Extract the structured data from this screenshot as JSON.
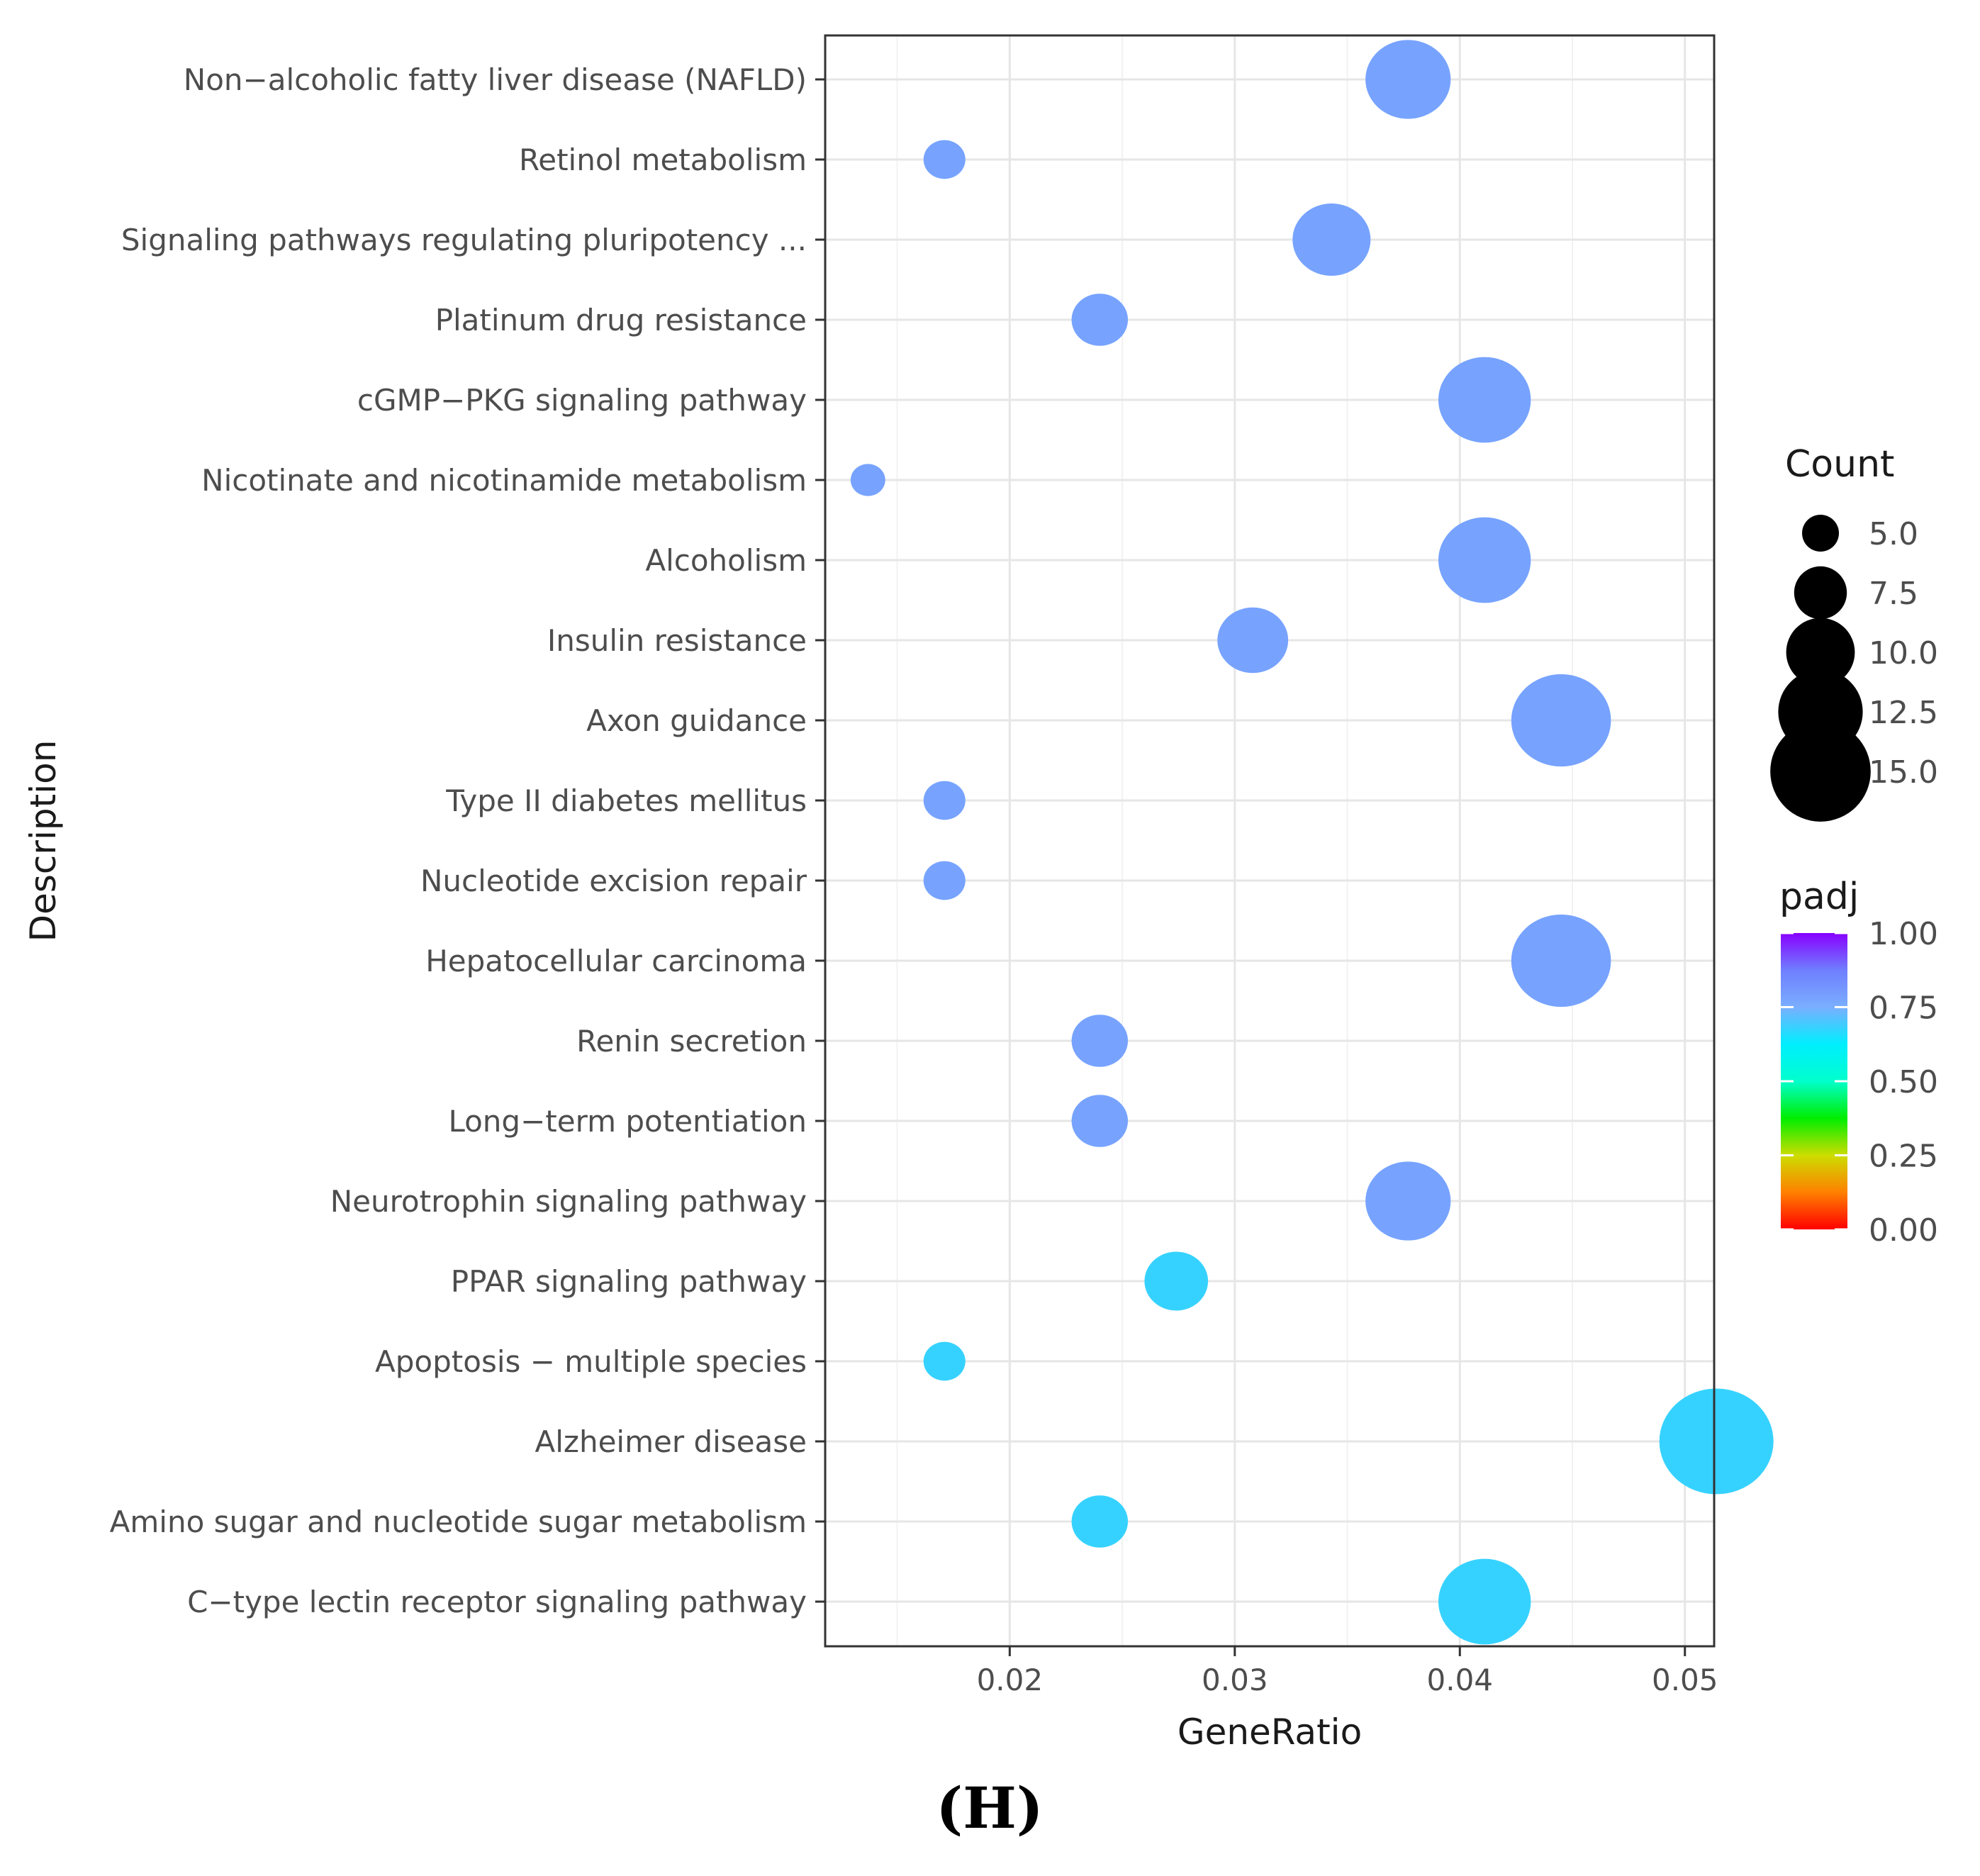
{
  "chart_data": {
    "type": "scatter",
    "title": "",
    "xlabel": "GeneRatio",
    "ylabel": "Description",
    "xlim": [
      0.0118,
      0.0513
    ],
    "x_ticks": [
      0.02,
      0.03,
      0.04,
      0.05
    ],
    "x_tick_labels": [
      "0.02",
      "0.03",
      "0.04",
      "0.05"
    ],
    "grid": true,
    "legend_position": "right",
    "categories": [
      "Non−alcoholic fatty liver disease (NAFLD)",
      "Retinol metabolism",
      "Signaling pathways regulating pluripotency ...",
      "Platinum drug resistance",
      "cGMP−PKG signaling pathway",
      "Nicotinate and nicotinamide metabolism",
      "Alcoholism",
      "Insulin resistance",
      "Axon guidance",
      "Type II diabetes mellitus",
      "Nucleotide excision repair",
      "Hepatocellular carcinoma",
      "Renin secretion",
      "Long−term potentiation",
      "Neurotrophin signaling pathway",
      "PPAR signaling pathway",
      "Apoptosis − multiple species",
      "Alzheimer disease",
      "Amino sugar and nucleotide sugar metabolism",
      "C−type lectin receptor signaling pathway"
    ],
    "points": [
      {
        "description": "Non−alcoholic fatty liver disease (NAFLD)",
        "gene_ratio": 0.0377,
        "count": 11,
        "padj": 0.78
      },
      {
        "description": "Retinol metabolism",
        "gene_ratio": 0.0171,
        "count": 5,
        "padj": 0.78
      },
      {
        "description": "Signaling pathways regulating pluripotency ...",
        "gene_ratio": 0.0343,
        "count": 10,
        "padj": 0.78
      },
      {
        "description": "Platinum drug resistance",
        "gene_ratio": 0.024,
        "count": 7,
        "padj": 0.78
      },
      {
        "description": "cGMP−PKG signaling pathway",
        "gene_ratio": 0.0411,
        "count": 12,
        "padj": 0.78
      },
      {
        "description": "Nicotinate and nicotinamide metabolism",
        "gene_ratio": 0.0137,
        "count": 4,
        "padj": 0.78
      },
      {
        "description": "Alcoholism",
        "gene_ratio": 0.0411,
        "count": 12,
        "padj": 0.78
      },
      {
        "description": "Insulin resistance",
        "gene_ratio": 0.0308,
        "count": 9,
        "padj": 0.78
      },
      {
        "description": "Axon guidance",
        "gene_ratio": 0.0445,
        "count": 13,
        "padj": 0.78
      },
      {
        "description": "Type II diabetes mellitus",
        "gene_ratio": 0.0171,
        "count": 5,
        "padj": 0.78
      },
      {
        "description": "Nucleotide excision repair",
        "gene_ratio": 0.0171,
        "count": 5,
        "padj": 0.78
      },
      {
        "description": "Hepatocellular carcinoma",
        "gene_ratio": 0.0445,
        "count": 13,
        "padj": 0.78
      },
      {
        "description": "Renin secretion",
        "gene_ratio": 0.024,
        "count": 7,
        "padj": 0.78
      },
      {
        "description": "Long−term potentiation",
        "gene_ratio": 0.024,
        "count": 7,
        "padj": 0.78
      },
      {
        "description": "Neurotrophin signaling pathway",
        "gene_ratio": 0.0377,
        "count": 11,
        "padj": 0.78
      },
      {
        "description": "PPAR signaling pathway",
        "gene_ratio": 0.0274,
        "count": 8,
        "padj": 0.68
      },
      {
        "description": "Apoptosis − multiple species",
        "gene_ratio": 0.0171,
        "count": 5,
        "padj": 0.68
      },
      {
        "description": "Alzheimer disease",
        "gene_ratio": 0.0514,
        "count": 15,
        "padj": 0.68
      },
      {
        "description": "Amino sugar and nucleotide sugar metabolism",
        "gene_ratio": 0.024,
        "count": 7,
        "padj": 0.68
      },
      {
        "description": "C−type lectin receptor signaling pathway",
        "gene_ratio": 0.0411,
        "count": 12,
        "padj": 0.68
      }
    ],
    "size_legend": {
      "title": "Count",
      "values": [
        5.0,
        7.5,
        10.0,
        12.5,
        15.0
      ],
      "labels": [
        "5.0",
        "7.5",
        "10.0",
        "12.5",
        "15.0"
      ]
    },
    "color_legend": {
      "title": "padj",
      "ticks": [
        1.0,
        0.75,
        0.5,
        0.25,
        0.0
      ],
      "labels": [
        "1.00",
        "0.75",
        "0.50",
        "0.25",
        "0.00"
      ],
      "colors": [
        "#ff0000",
        "#ff8000",
        "#ccdd00",
        "#00ee00",
        "#00ffcc",
        "#00eeff",
        "#7aaeff",
        "#6f7fff",
        "#8800ff"
      ]
    },
    "panel_label": "(H)"
  }
}
